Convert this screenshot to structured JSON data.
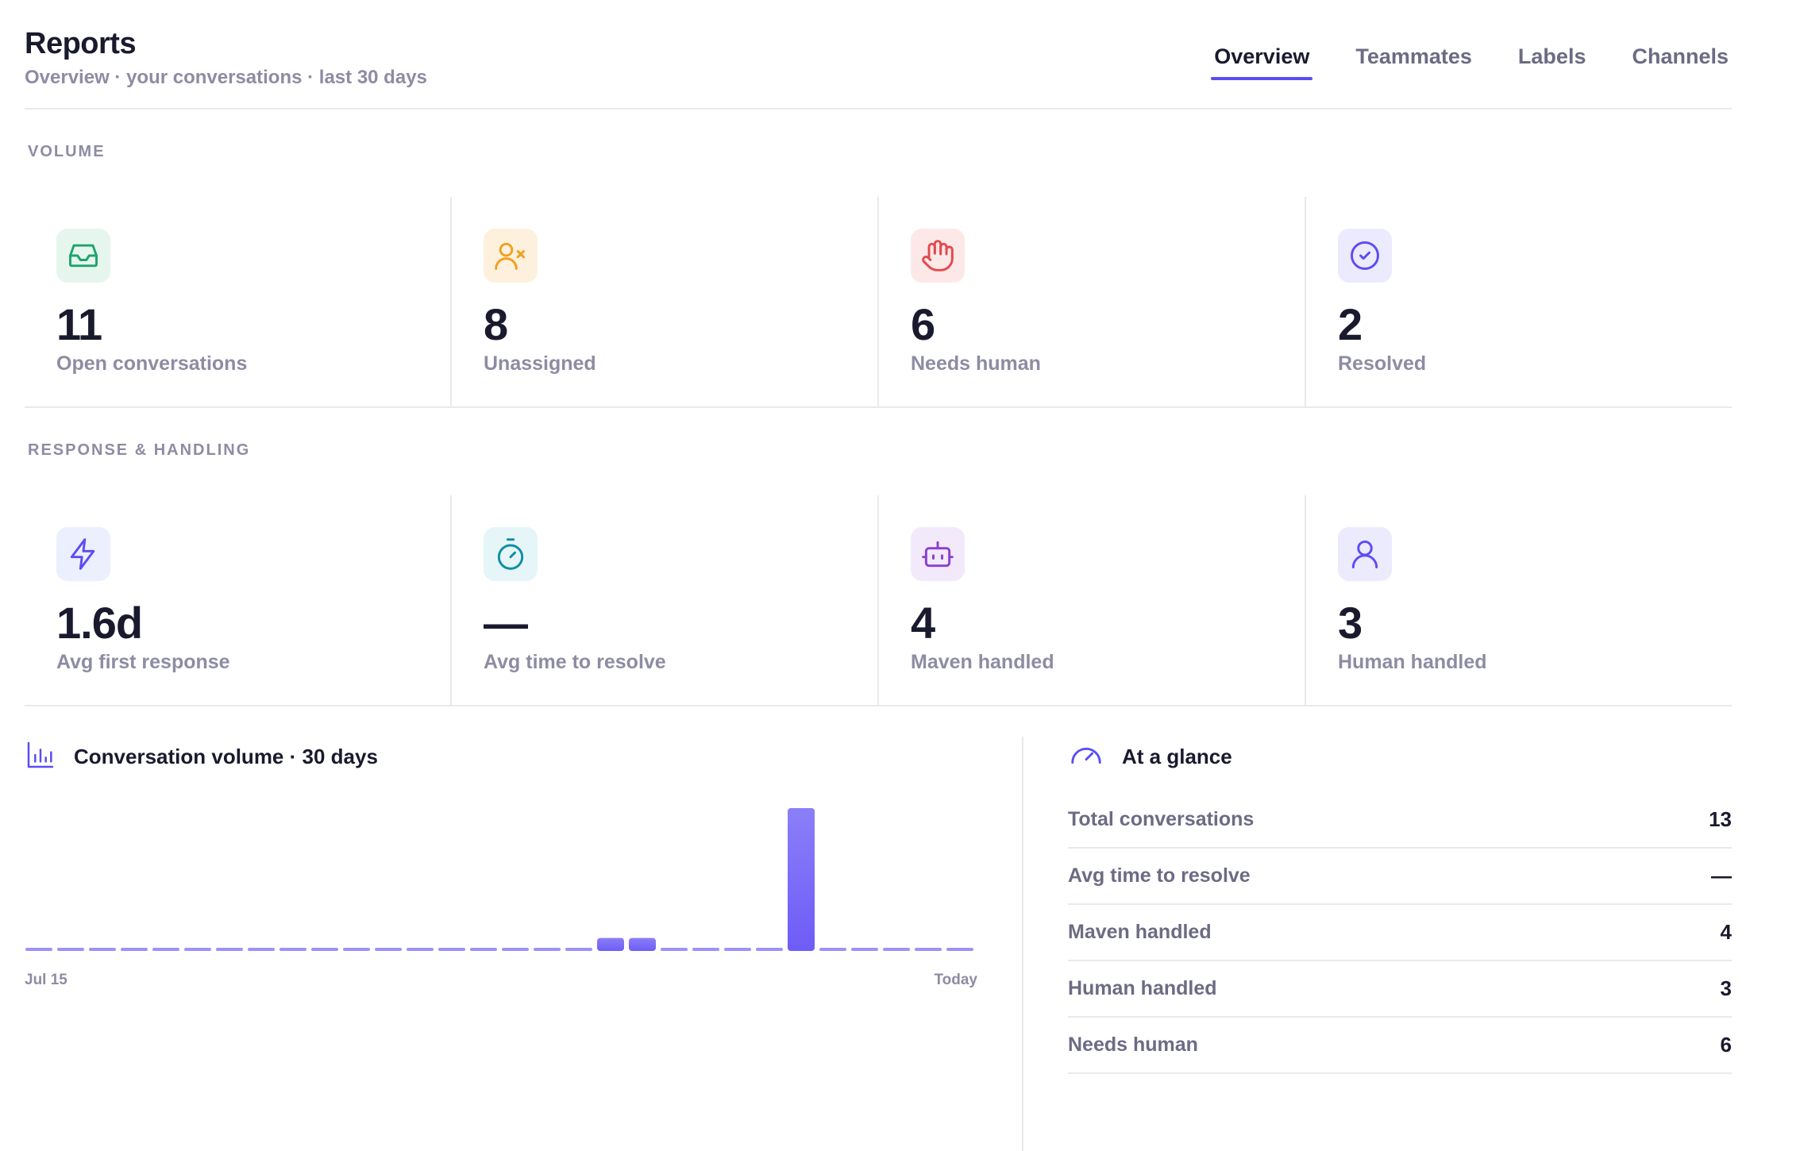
{
  "header": {
    "title": "Reports",
    "subtitle": "Overview · your conversations · last 30 days",
    "tabs": [
      {
        "label": "Overview",
        "active": true
      },
      {
        "label": "Teammates",
        "active": false
      },
      {
        "label": "Labels",
        "active": false
      },
      {
        "label": "Channels",
        "active": false
      }
    ]
  },
  "volume": {
    "label": "VOLUME",
    "metrics": [
      {
        "value": "11",
        "label": "Open conversations",
        "icon": "inbox-icon",
        "color": "#1fa36b",
        "bg": "#e6f6ef"
      },
      {
        "value": "8",
        "label": "Unassigned",
        "icon": "user-x-icon",
        "color": "#f0a020",
        "bg": "#fdf1dd"
      },
      {
        "value": "6",
        "label": "Needs human",
        "icon": "hand-icon",
        "color": "#e5484d",
        "bg": "#fde8e8"
      },
      {
        "value": "2",
        "label": "Resolved",
        "icon": "check-circle-icon",
        "color": "#5b4cf5",
        "bg": "#eceafd"
      }
    ]
  },
  "response": {
    "label": "RESPONSE & HANDLING",
    "metrics": [
      {
        "value": "1.6d",
        "label": "Avg first response",
        "icon": "zap-icon",
        "color": "#5b4cf5",
        "bg": "#eceffd"
      },
      {
        "value": "—",
        "label": "Avg time to resolve",
        "icon": "timer-icon",
        "color": "#0e8fa3",
        "bg": "#e5f5f8"
      },
      {
        "value": "4",
        "label": "Maven handled",
        "icon": "bot-icon",
        "color": "#8a3fd1",
        "bg": "#f2e9fb"
      },
      {
        "value": "3",
        "label": "Human handled",
        "icon": "user-icon",
        "color": "#5b4cf5",
        "bg": "#eceafd"
      }
    ]
  },
  "chart_panel": {
    "title": "Conversation volume · 30 days",
    "icon": "bar-chart-icon"
  },
  "chart_data": {
    "type": "bar",
    "x": [
      "Jul 15",
      "",
      "",
      "",
      "",
      "",
      "",
      "",
      "",
      "",
      "",
      "",
      "",
      "",
      "",
      "",
      "",
      "",
      "",
      "",
      "",
      "",
      "",
      "",
      "",
      "",
      "",
      "",
      "",
      "Today"
    ],
    "x_tick_labels": [
      "Jul 15",
      "Today"
    ],
    "values": [
      0,
      0,
      0,
      0,
      0,
      0,
      0,
      0,
      0,
      0,
      0,
      0,
      0,
      0,
      0,
      0,
      0,
      0,
      1,
      1,
      0,
      0,
      0,
      0,
      11,
      0,
      0,
      0,
      0,
      0
    ],
    "bar_color": "#6e5cf7",
    "ylim": [
      0,
      11
    ],
    "grid": false
  },
  "glance": {
    "title": "At a glance",
    "icon": "gauge-icon",
    "rows": [
      {
        "label": "Total conversations",
        "value": "13"
      },
      {
        "label": "Avg time to resolve",
        "value": "—"
      },
      {
        "label": "Maven handled",
        "value": "4"
      },
      {
        "label": "Human handled",
        "value": "3"
      },
      {
        "label": "Needs human",
        "value": "6"
      }
    ]
  }
}
